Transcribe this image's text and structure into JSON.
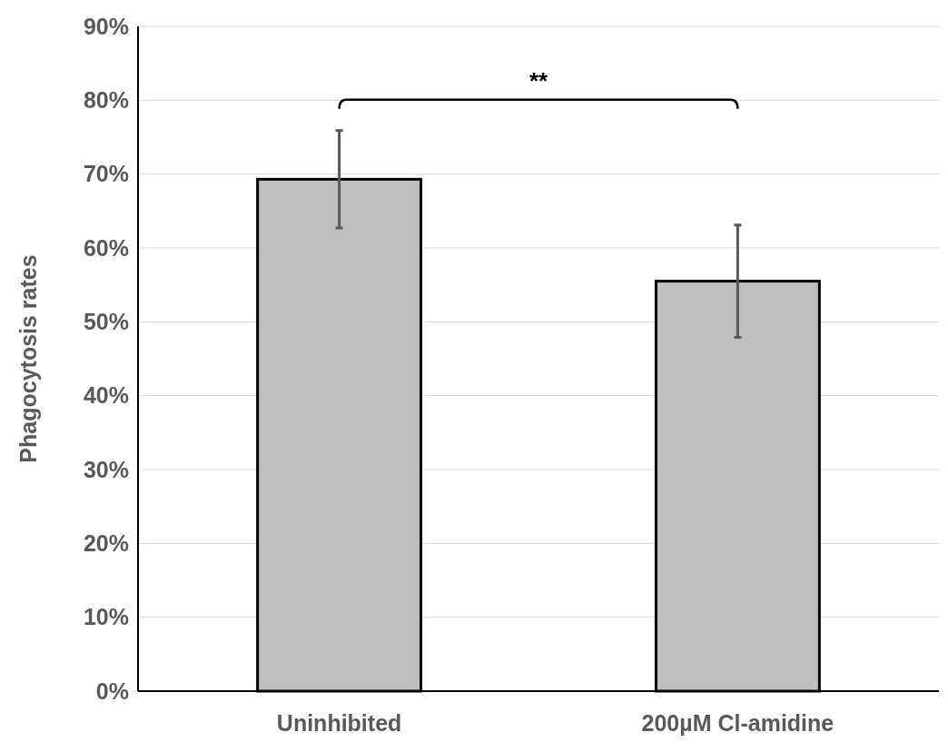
{
  "chart_data": {
    "type": "bar",
    "ylabel": "Phagocytosis rates",
    "categories": [
      "Uninhibited",
      "200µM Cl-amidine"
    ],
    "values": [
      69.3,
      55.5
    ],
    "errors": [
      6.6,
      7.6
    ],
    "color": "#bfbfbf",
    "ylim": [
      0,
      90
    ],
    "yticks": [
      {
        "value": 0,
        "label": "0%"
      },
      {
        "value": 10,
        "label": "10%"
      },
      {
        "value": 20,
        "label": "20%"
      },
      {
        "value": 30,
        "label": "30%"
      },
      {
        "value": 40,
        "label": "40%"
      },
      {
        "value": 50,
        "label": "50%"
      },
      {
        "value": 60,
        "label": "60%"
      },
      {
        "value": 70,
        "label": "70%"
      },
      {
        "value": 80,
        "label": "80%"
      },
      {
        "value": 90,
        "label": "90%"
      }
    ],
    "grid": "y",
    "annotations": [
      "**"
    ]
  }
}
